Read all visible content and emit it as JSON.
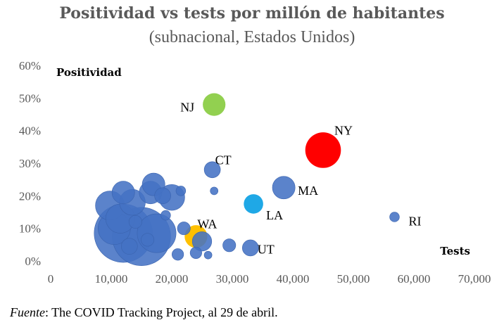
{
  "header": {
    "title": "Positividad vs tests por millón de habitantes",
    "subtitle": "(subnacional, Estados Unidos)"
  },
  "footer": {
    "source_label": "Fuente",
    "source_text": ": The COVID Tracking Project, al 29 de abril."
  },
  "colors": {
    "default": "#4472C4",
    "NJ": "#92D050",
    "NY": "#FF0000",
    "LA": "#1FA8E6",
    "WA": "#FFC000",
    "axis_text": "#595959"
  },
  "chart_data": {
    "type": "scatter",
    "title": "Positividad vs tests por millón de habitantes",
    "subtitle": "(subnacional, Estados Unidos)",
    "xlabel": "Tests",
    "ylabel": "Positividad",
    "xlim": [
      0,
      70000
    ],
    "ylim": [
      0,
      0.6
    ],
    "x_ticks": [
      "0",
      "10,000",
      "20,000",
      "30,000",
      "40,000",
      "50,000",
      "60,000",
      "70,000"
    ],
    "y_ticks": [
      "0%",
      "10%",
      "20%",
      "30%",
      "40%",
      "50%",
      "60%"
    ],
    "grid": false,
    "bubble_size_meaning": "relative",
    "points": [
      {
        "label": "NJ",
        "x": 27000,
        "y": 0.48,
        "size": 3.5,
        "color": "NJ"
      },
      {
        "label": "NY",
        "x": 45000,
        "y": 0.34,
        "size": 5.5,
        "color": "NY"
      },
      {
        "label": "CT",
        "x": 26700,
        "y": 0.28,
        "size": 2.5,
        "color": "default"
      },
      {
        "label": "MA",
        "x": 38500,
        "y": 0.225,
        "size": 3.5,
        "color": "default"
      },
      {
        "label": "LA",
        "x": 33500,
        "y": 0.175,
        "size": 3.0,
        "color": "LA"
      },
      {
        "label": "RI",
        "x": 56800,
        "y": 0.135,
        "size": 1.5,
        "color": "default"
      },
      {
        "label": "WA",
        "x": 24000,
        "y": 0.075,
        "size": 3.5,
        "color": "WA"
      },
      {
        "label": "UT",
        "x": 33000,
        "y": 0.04,
        "size": 2.5,
        "color": "default"
      },
      {
        "label": "",
        "x": 9800,
        "y": 0.17,
        "size": 4.5,
        "color": "default"
      },
      {
        "label": "",
        "x": 12000,
        "y": 0.21,
        "size": 3.5,
        "color": "default"
      },
      {
        "label": "",
        "x": 13500,
        "y": 0.18,
        "size": 4.0,
        "color": "default"
      },
      {
        "label": "",
        "x": 11500,
        "y": 0.13,
        "size": 4.5,
        "color": "default"
      },
      {
        "label": "",
        "x": 10500,
        "y": 0.1,
        "size": 5.0,
        "color": "default"
      },
      {
        "label": "",
        "x": 12000,
        "y": 0.085,
        "size": 9.0,
        "color": "default"
      },
      {
        "label": "",
        "x": 15000,
        "y": 0.075,
        "size": 9.0,
        "color": "default"
      },
      {
        "label": "",
        "x": 17500,
        "y": 0.085,
        "size": 6.0,
        "color": "default"
      },
      {
        "label": "",
        "x": 16500,
        "y": 0.21,
        "size": 3.5,
        "color": "default"
      },
      {
        "label": "",
        "x": 17000,
        "y": 0.235,
        "size": 3.5,
        "color": "default"
      },
      {
        "label": "",
        "x": 18500,
        "y": 0.2,
        "size": 2.5,
        "color": "default"
      },
      {
        "label": "",
        "x": 20000,
        "y": 0.195,
        "size": 4.0,
        "color": "default"
      },
      {
        "label": "",
        "x": 21500,
        "y": 0.215,
        "size": 1.5,
        "color": "default"
      },
      {
        "label": "",
        "x": 19000,
        "y": 0.14,
        "size": 1.5,
        "color": "default"
      },
      {
        "label": "",
        "x": 14000,
        "y": 0.12,
        "size": 2.0,
        "color": "default"
      },
      {
        "label": "",
        "x": 13000,
        "y": 0.045,
        "size": 2.5,
        "color": "default"
      },
      {
        "label": "",
        "x": 16000,
        "y": 0.065,
        "size": 2.0,
        "color": "default"
      },
      {
        "label": "",
        "x": 22000,
        "y": 0.1,
        "size": 2.0,
        "color": "default"
      },
      {
        "label": "",
        "x": 25000,
        "y": 0.06,
        "size": 3.0,
        "color": "default"
      },
      {
        "label": "",
        "x": 24000,
        "y": 0.025,
        "size": 1.8,
        "color": "default"
      },
      {
        "label": "",
        "x": 21000,
        "y": 0.02,
        "size": 1.8,
        "color": "default"
      },
      {
        "label": "",
        "x": 26000,
        "y": 0.018,
        "size": 1.2,
        "color": "default"
      },
      {
        "label": "",
        "x": 29500,
        "y": 0.048,
        "size": 2.0,
        "color": "default"
      },
      {
        "label": "",
        "x": 27000,
        "y": 0.215,
        "size": 1.2,
        "color": "default"
      }
    ]
  }
}
